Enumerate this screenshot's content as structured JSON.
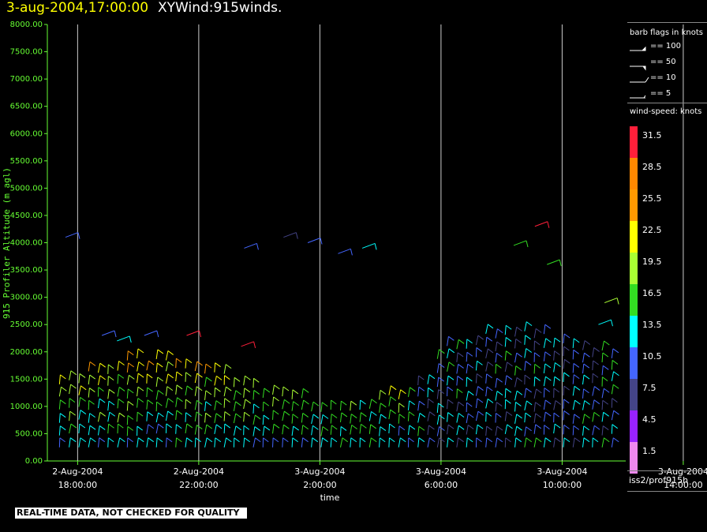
{
  "header": {
    "datetime": "3-aug-2004,17:00:00",
    "product": "XYWind:915winds."
  },
  "footer": {
    "notice": "REAL-TIME DATA, NOT CHECKED FOR QUALITY",
    "source": "iss2/prof915h"
  },
  "legend": {
    "flags_title": "barb flags in knots",
    "flags": [
      "== 100",
      "== 50",
      "== 10",
      "== 5"
    ],
    "speed_title": "wind-speed: knots",
    "speed_labels": [
      "31.5",
      "28.5",
      "25.5",
      "22.5",
      "19.5",
      "16.5",
      "13.5",
      "10.5",
      "7.5",
      "4.5",
      "1.5"
    ],
    "speed_colors": [
      "#ff1f3a",
      "#ff8800",
      "#ff9900",
      "#ffff00",
      "#aaff33",
      "#33dd22",
      "#00ffff",
      "#4466ff",
      "#444488",
      "#9922ff",
      "#ee88ee"
    ]
  },
  "chart_data": {
    "type": "wind_barb_time_height",
    "ylabel": "915 Profiler Altitude (m agl)",
    "xlabel": "time",
    "ylim": [
      0,
      8000
    ],
    "yticks": [
      "0.00",
      "500.00",
      "1000.00",
      "1500.00",
      "2000.00",
      "2500.00",
      "3000.00",
      "3500.00",
      "4000.00",
      "4500.00",
      "5000.00",
      "5500.00",
      "6000.00",
      "6500.00",
      "7000.00",
      "7500.00",
      "8000.00"
    ],
    "xticks": [
      {
        "date": "2-Aug-2004",
        "time": "18:00:00"
      },
      {
        "date": "2-Aug-2004",
        "time": "22:00:00"
      },
      {
        "date": "3-Aug-2004",
        "time": "2:00:00"
      },
      {
        "date": "3-Aug-2004",
        "time": "6:00:00"
      },
      {
        "date": "3-Aug-2004",
        "time": "10:00:00"
      },
      {
        "date": "3-Aug-2004",
        "time": "14:00:00"
      }
    ],
    "x_range_hours": [
      -1,
      18.1
    ],
    "grid": "vertical at major ticks"
  }
}
